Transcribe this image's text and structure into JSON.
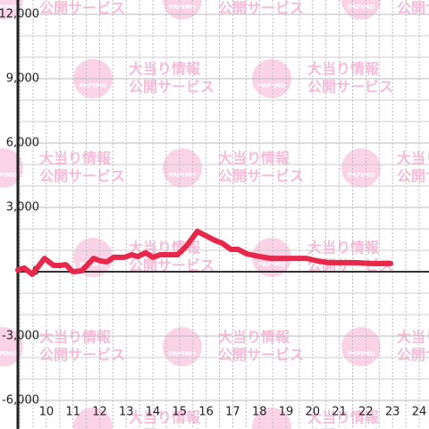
{
  "chart_data": {
    "type": "line",
    "x": [
      8.93,
      9.17,
      9.47,
      9.93,
      10.27,
      10.53,
      10.73,
      11.0,
      11.33,
      11.77,
      12.03,
      12.27,
      12.53,
      12.93,
      13.2,
      13.43,
      13.73,
      14.0,
      14.27,
      14.6,
      14.93,
      15.27,
      15.67,
      16.0,
      16.33,
      16.6,
      16.93,
      17.2,
      17.53,
      18.0,
      18.43,
      18.93,
      19.77,
      20.2,
      20.6,
      21.6,
      22.27,
      22.93
    ],
    "series": [
      {
        "color": "#e8284a",
        "values": [
          80,
          170,
          -120,
          620,
          290,
          290,
          330,
          0,
          40,
          620,
          500,
          460,
          670,
          670,
          790,
          710,
          880,
          670,
          790,
          790,
          790,
          1210,
          1880,
          1670,
          1460,
          1330,
          1040,
          1040,
          830,
          710,
          620,
          620,
          620,
          500,
          420,
          420,
          380,
          380
        ]
      }
    ],
    "xlim": [
      8.93,
      24.37
    ],
    "xticks": [
      10,
      11,
      12,
      13,
      14,
      15,
      16,
      17,
      18,
      19,
      20,
      21,
      22,
      23,
      24
    ],
    "minor_xticks": [
      9,
      9.5,
      10,
      10.5,
      11,
      11.5,
      12,
      12.5,
      13,
      13.5,
      14,
      14.5,
      15,
      15.5,
      16,
      16.5,
      17,
      17.5,
      18,
      18.5,
      19,
      19.5,
      20,
      20.5,
      21,
      21.5,
      22,
      22.5,
      23,
      23.5,
      24
    ],
    "ylim": [
      -6000,
      12000
    ],
    "yticks": [
      {
        "value": -6000,
        "label": "-6,000"
      },
      {
        "value": -3000,
        "label": "-3,000"
      },
      0,
      {
        "value": 3000,
        "label": "3,000"
      },
      {
        "value": 6000,
        "label": "6,000"
      },
      {
        "value": 9000,
        "label": "9,000"
      },
      {
        "value": 12000,
        "label": "12,000"
      }
    ],
    "minor_yticks": [
      -5000,
      -4000,
      -2000,
      -1000,
      1000,
      2000,
      4000,
      5000,
      7000,
      8000,
      10000,
      11000
    ],
    "grid": true
  },
  "watermark": {
    "logo": "PAPIMO",
    "line1": "大当り情報",
    "line2": "公開サービス"
  }
}
